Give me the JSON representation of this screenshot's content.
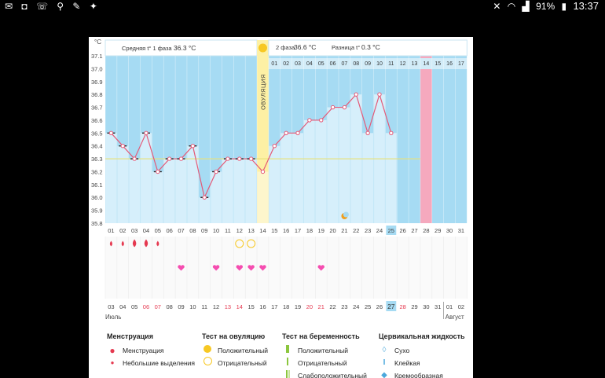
{
  "statusbar": {
    "battery": "91%",
    "time": "13:37"
  },
  "header": {
    "unit": "°C",
    "phase1_label": "Средняя t° 1 фаза",
    "phase1_value": "36.3 °C",
    "ovulation_label": "ОВУЛЯЦИЯ",
    "phase2_label": "2 фаза",
    "phase2_value": "36.6 °C",
    "diff_label": "Разница t°",
    "diff_value": "0.3 °C"
  },
  "months": {
    "left": "Июль",
    "right": "Август"
  },
  "chart_data": {
    "type": "line",
    "ylabel": "°C",
    "ylim": [
      35.8,
      37.1
    ],
    "yticks": [
      37.1,
      37.0,
      36.9,
      36.8,
      36.7,
      36.6,
      36.5,
      36.4,
      36.3,
      36.2,
      36.1,
      36.0,
      35.9,
      35.8
    ],
    "cycle_days": [
      "01",
      "02",
      "03",
      "04",
      "05",
      "06",
      "07",
      "08",
      "09",
      "10",
      "11",
      "12",
      "13",
      "14",
      "15",
      "16",
      "17",
      "18",
      "19",
      "20",
      "21",
      "22",
      "23",
      "24",
      "25",
      "26",
      "27",
      "28",
      "29",
      "30",
      "31"
    ],
    "dates": [
      "03",
      "04",
      "05",
      "06",
      "07",
      "08",
      "09",
      "10",
      "11",
      "12",
      "13",
      "14",
      "15",
      "16",
      "17",
      "18",
      "19",
      "20",
      "21",
      "22",
      "23",
      "24",
      "25",
      "26",
      "27",
      "28",
      "29",
      "30",
      "31",
      "01",
      "02"
    ],
    "red_dates": [
      "06",
      "07",
      "13",
      "14",
      "20",
      "21",
      "28"
    ],
    "today_index": 24,
    "temperatures": [
      36.5,
      36.4,
      36.3,
      36.5,
      36.2,
      36.3,
      36.3,
      36.4,
      36.0,
      36.2,
      36.3,
      36.3,
      36.3,
      36.2,
      36.4,
      36.5,
      36.5,
      36.6,
      36.6,
      36.7,
      36.7,
      36.8,
      36.5,
      36.8,
      36.5
    ],
    "coverline": 36.3,
    "ovulation_day": 14,
    "post_ovulation_days": [
      "01",
      "02",
      "03",
      "04",
      "05",
      "06",
      "07",
      "08",
      "09",
      "10",
      "11",
      "12",
      "13",
      "14",
      "15",
      "16",
      "17"
    ],
    "expected_period_day": 28,
    "menstruation": [
      1,
      2,
      3,
      4,
      5
    ],
    "ovulation_tests_negative": [
      12,
      13
    ],
    "hearts": [
      7,
      10,
      12,
      13,
      14,
      19
    ],
    "moon_day": 21
  },
  "legend": {
    "menstruation": {
      "title": "Менструация",
      "items": [
        "Менструация",
        "Небольшие выделения"
      ]
    },
    "ovulation_test": {
      "title": "Тест на овуляцию",
      "items": [
        "Положительный",
        "Отрицательный"
      ]
    },
    "pregnancy_test": {
      "title": "Тест на беременность",
      "items": [
        "Положительный",
        "Отрицательный",
        "Слабоположительный"
      ]
    },
    "cervical": {
      "title": "Цервикальная жидкость",
      "items": [
        "Сухо",
        "Клейкая",
        "Кремообразная"
      ]
    }
  }
}
